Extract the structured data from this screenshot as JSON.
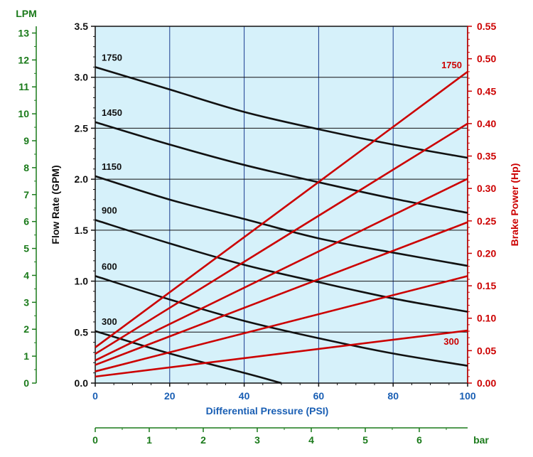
{
  "chart_data": {
    "type": "line",
    "x_axis": {
      "label": "Differential Pressure (PSI)",
      "range": [
        0,
        100
      ],
      "ticks": [
        0,
        20,
        40,
        60,
        80,
        100
      ],
      "color": "#1a5fb4"
    },
    "y_axis_left": {
      "label": "Flow Rate (GPM)",
      "range": [
        0,
        3.5
      ],
      "ticks": [
        "0.0",
        "0.5",
        "1.0",
        "1.5",
        "2.0",
        "2.5",
        "3.0",
        "3.5"
      ],
      "color": "#111111"
    },
    "y_axis_right": {
      "label": "Brake Power (Hp)",
      "range": [
        0,
        0.55
      ],
      "ticks": [
        "0.00",
        "0.05",
        "0.10",
        "0.15",
        "0.20",
        "0.25",
        "0.30",
        "0.35",
        "0.40",
        "0.45",
        "0.50",
        "0.55"
      ],
      "color": "#cc0000"
    },
    "y_axis_lpm": {
      "label": "LPM",
      "range": [
        0,
        13.25
      ],
      "ticks": [
        "0",
        "1",
        "2",
        "3",
        "4",
        "5",
        "6",
        "7",
        "8",
        "9",
        "10",
        "11",
        "12",
        "13"
      ],
      "color": "#1a7a1a"
    },
    "x_axis_bar": {
      "label": "bar",
      "range": [
        0,
        6.895
      ],
      "ticks": [
        "0",
        "1",
        "2",
        "3",
        "4",
        "5",
        "6"
      ],
      "color": "#1a7a1a"
    },
    "grid": true,
    "plot_background": "#d6f1fa",
    "flow_series": [
      {
        "name": "1750",
        "color": "#111111",
        "x": [
          0,
          20,
          40,
          60,
          80,
          100
        ],
        "y": [
          3.1,
          2.88,
          2.66,
          2.49,
          2.34,
          2.21
        ]
      },
      {
        "name": "1450",
        "color": "#111111",
        "x": [
          0,
          20,
          40,
          60,
          80,
          100
        ],
        "y": [
          2.56,
          2.34,
          2.14,
          1.97,
          1.81,
          1.67
        ]
      },
      {
        "name": "1150",
        "color": "#111111",
        "x": [
          0,
          20,
          40,
          60,
          80,
          100
        ],
        "y": [
          2.03,
          1.8,
          1.61,
          1.42,
          1.28,
          1.15
        ]
      },
      {
        "name": "900",
        "color": "#111111",
        "x": [
          0,
          20,
          40,
          60,
          80,
          100
        ],
        "y": [
          1.6,
          1.37,
          1.16,
          0.99,
          0.83,
          0.7
        ]
      },
      {
        "name": "600",
        "color": "#111111",
        "x": [
          0,
          20,
          40,
          60,
          80,
          100
        ],
        "y": [
          1.05,
          0.82,
          0.61,
          0.44,
          0.29,
          0.17
        ]
      },
      {
        "name": "300",
        "color": "#111111",
        "x": [
          0,
          20,
          40,
          50
        ],
        "y": [
          0.51,
          0.29,
          0.1,
          0.0
        ]
      }
    ],
    "power_series": [
      {
        "name": "1750",
        "color": "#cc0000",
        "x": [
          0,
          100
        ],
        "y": [
          0.055,
          0.48
        ]
      },
      {
        "name": "",
        "color": "#cc0000",
        "x": [
          0,
          100
        ],
        "y": [
          0.045,
          0.4
        ]
      },
      {
        "name": "",
        "color": "#cc0000",
        "x": [
          0,
          100
        ],
        "y": [
          0.035,
          0.315
        ]
      },
      {
        "name": "",
        "color": "#cc0000",
        "x": [
          0,
          100
        ],
        "y": [
          0.028,
          0.248
        ]
      },
      {
        "name": "",
        "color": "#cc0000",
        "x": [
          0,
          100
        ],
        "y": [
          0.018,
          0.165
        ]
      },
      {
        "name": "300",
        "color": "#cc0000",
        "x": [
          0,
          100
        ],
        "y": [
          0.01,
          0.081
        ]
      }
    ]
  }
}
